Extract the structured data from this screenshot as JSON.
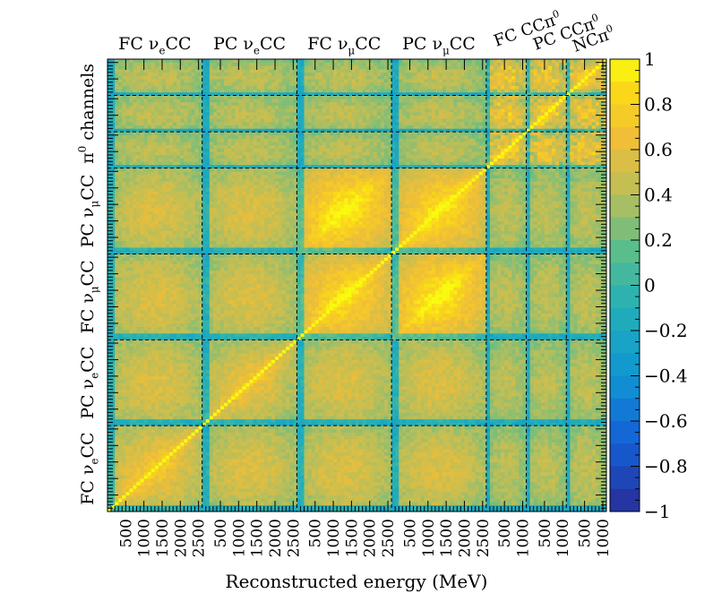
{
  "chart_data": {
    "type": "heatmap",
    "title": "",
    "xlabel": "Reconstructed energy (MeV)",
    "ylabel": "",
    "zlim": [
      -1,
      1
    ],
    "colorbar_ticks": [
      "1",
      "0.8",
      "0.6",
      "0.4",
      "0.2",
      "0",
      "−0.2",
      "−0.4",
      "−0.6",
      "−0.8",
      "−1"
    ],
    "colorbar_values": [
      1,
      0.8,
      0.6,
      0.4,
      0.2,
      0,
      -0.2,
      -0.4,
      -0.6,
      -0.8,
      -1
    ],
    "blocks": [
      {
        "name": "FC ν_e CC",
        "main": "FC ν",
        "sub": "e",
        "tail": "CC",
        "bins": 26,
        "range": [
          0,
          2600
        ],
        "ticks": [
          "500",
          "1000",
          "1500",
          "2000",
          "2500"
        ]
      },
      {
        "name": "PC ν_e CC",
        "main": "PC ν",
        "sub": "e",
        "tail": "CC",
        "bins": 26,
        "range": [
          0,
          2600
        ],
        "ticks": [
          "500",
          "1000",
          "1500",
          "2000",
          "2500"
        ]
      },
      {
        "name": "FC ν_μ CC",
        "main": "FC ν",
        "sub": "μ",
        "tail": "CC",
        "bins": 26,
        "range": [
          0,
          2600
        ],
        "ticks": [
          "500",
          "1000",
          "1500",
          "2000",
          "2500"
        ]
      },
      {
        "name": "PC ν_μ CC",
        "main": "PC ν",
        "sub": "μ",
        "tail": "CC",
        "bins": 26,
        "range": [
          0,
          2600
        ],
        "ticks": [
          "500",
          "1000",
          "1500",
          "2000",
          "2500"
        ]
      },
      {
        "name": "FC CCπ⁰",
        "main": "FC CCπ",
        "sup": "0",
        "bins": 11,
        "range": [
          0,
          1100
        ],
        "ticks": [
          "500",
          "1000"
        ]
      },
      {
        "name": "PC CCπ⁰",
        "main": "PC CCπ",
        "sup": "0",
        "bins": 11,
        "range": [
          0,
          1100
        ],
        "ticks": [
          "500",
          "1000"
        ]
      },
      {
        "name": "NCπ⁰",
        "main": "NCπ",
        "sup": "0",
        "bins": 11,
        "range": [
          0,
          1100
        ],
        "ticks": [
          "500",
          "1000"
        ]
      }
    ],
    "y_group_labels": [
      {
        "name": "FC ν_e CC",
        "main": "FC ν",
        "sub": "e",
        "tail": "CC"
      },
      {
        "name": "PC ν_e CC",
        "main": "PC ν",
        "sub": "e",
        "tail": "CC"
      },
      {
        "name": "FC ν_μ CC",
        "main": "FC ν",
        "sub": "μ",
        "tail": "CC"
      },
      {
        "name": "PC ν_μ CC",
        "main": "PC ν",
        "sub": "μ",
        "tail": "CC"
      },
      {
        "name": "π⁰ channels",
        "main": "π",
        "sup": "0",
        "tail": " channels"
      }
    ],
    "diagonal_value": 1,
    "typical_block_correlations": {
      "FC_nue_vs_FC_nue": 0.55,
      "PC_nue_vs_PC_nue": 0.5,
      "FC_numu_vs_FC_numu": 0.7,
      "PC_numu_vs_PC_numu": 0.7,
      "FC_numu_vs_PC_numu": 0.75,
      "nue_vs_numu": 0.5,
      "pi0_vs_pi0": 0.6,
      "pi0_vs_numu": 0.4
    }
  }
}
